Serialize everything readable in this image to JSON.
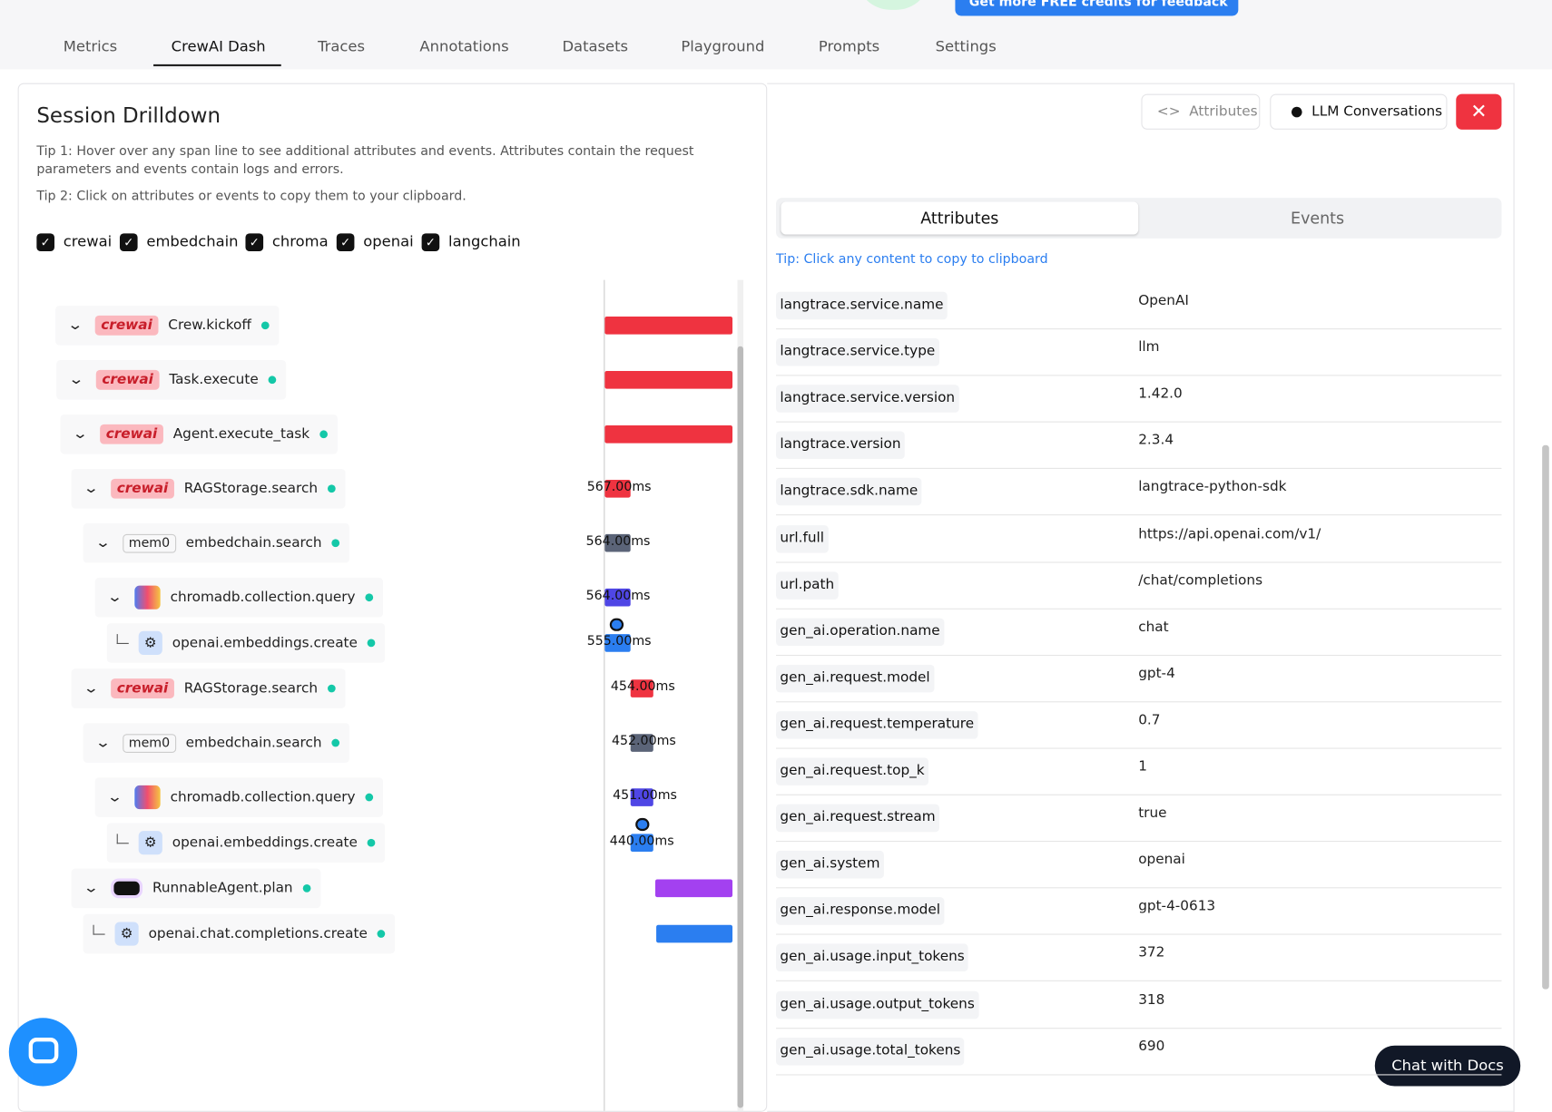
{
  "promo": "Get more FREE credits for feedback",
  "nav": {
    "tabs": [
      "Metrics",
      "CrewAI Dash",
      "Traces",
      "Annotations",
      "Datasets",
      "Playground",
      "Prompts",
      "Settings"
    ]
  },
  "drilldown": {
    "title": "Session Drilldown",
    "tip1": "Tip 1: Hover over any span line to see additional attributes and events. Attributes contain the request parameters and events contain logs and errors.",
    "tip2": "Tip 2: Click on attributes or events to copy them to your clipboard.",
    "filters": [
      "crewai",
      "embedchain",
      "chroma",
      "openai",
      "langchain"
    ],
    "spans": [
      {
        "badge": "crewai",
        "name": "Crew.kickoff"
      },
      {
        "badge": "crewai",
        "name": "Task.execute"
      },
      {
        "badge": "crewai",
        "name": "Agent.execute_task"
      },
      {
        "badge": "crewai",
        "name": "RAGStorage.search",
        "duration": "567.00ms"
      },
      {
        "badge": "mem0",
        "name": "embedchain.search",
        "duration": "564.00ms"
      },
      {
        "name": "chromadb.collection.query",
        "duration": "564.00ms"
      },
      {
        "name": "openai.embeddings.create",
        "duration": "555.00ms"
      },
      {
        "badge": "crewai",
        "name": "RAGStorage.search",
        "duration": "454.00ms"
      },
      {
        "badge": "mem0",
        "name": "embedchain.search",
        "duration": "452.00ms"
      },
      {
        "name": "chromadb.collection.query",
        "duration": "451.00ms"
      },
      {
        "name": "openai.embeddings.create",
        "duration": "440.00ms"
      },
      {
        "name": "RunnableAgent.plan"
      },
      {
        "name": "openai.chat.completions.create"
      }
    ]
  },
  "details": {
    "buttons": [
      "Attributes",
      "LLM Conversations"
    ],
    "tabs": [
      "Attributes",
      "Events"
    ],
    "tip": "Tip: Click any content to copy to clipboard",
    "rows": [
      [
        "langtrace.service.name",
        "OpenAI"
      ],
      [
        "langtrace.service.type",
        "llm"
      ],
      [
        "langtrace.service.version",
        "1.42.0"
      ],
      [
        "langtrace.version",
        "2.3.4"
      ],
      [
        "langtrace.sdk.name",
        "langtrace-python-sdk"
      ],
      [
        "url.full",
        "https://api.openai.com/v1/"
      ],
      [
        "url.path",
        "/chat/completions"
      ],
      [
        "gen_ai.operation.name",
        "chat"
      ],
      [
        "gen_ai.request.model",
        "gpt-4"
      ],
      [
        "gen_ai.request.temperature",
        "0.7"
      ],
      [
        "gen_ai.request.top_k",
        "1"
      ],
      [
        "gen_ai.request.stream",
        "true"
      ],
      [
        "gen_ai.system",
        "openai"
      ],
      [
        "gen_ai.response.model",
        "gpt-4-0613"
      ],
      [
        "gen_ai.usage.input_tokens",
        "372"
      ],
      [
        "gen_ai.usage.output_tokens",
        "318"
      ],
      [
        "gen_ai.usage.total_tokens",
        "690"
      ]
    ]
  },
  "chat_button": "Chat with Docs"
}
